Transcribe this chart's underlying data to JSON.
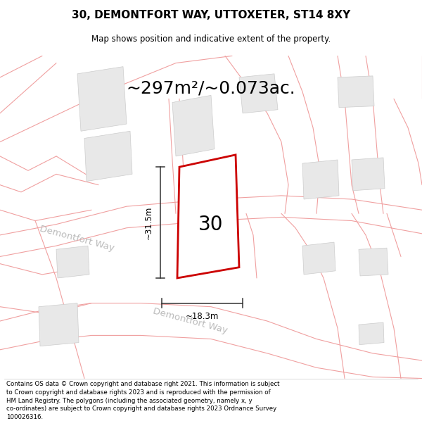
{
  "title": "30, DEMONTFORT WAY, UTTOXETER, ST14 8XY",
  "subtitle": "Map shows position and indicative extent of the property.",
  "area_text": "~297m²/~0.073ac.",
  "property_number": "30",
  "dim_height": "~31.5m",
  "dim_width": "~18.3m",
  "copyright_text": "Contains OS data © Crown copyright and database right 2021. This information is subject to Crown copyright and database rights 2023 and is reproduced with the permission of HM Land Registry. The polygons (including the associated geometry, namely x, y co-ordinates) are subject to Crown copyright and database rights 2023 Ordnance Survey 100026316.",
  "bg_color": "#ffffff",
  "map_bg": "#ffffff",
  "road_line_color": "#f0a0a0",
  "building_fill": "#e8e8e8",
  "building_edge": "#cccccc",
  "property_color": "#cc0000",
  "dim_color": "#333333",
  "road_label_color": "#bbbbbb",
  "title_fontsize": 11,
  "subtitle_fontsize": 8.5,
  "area_fontsize": 18,
  "prop_num_fontsize": 20,
  "dim_fontsize": 8.5,
  "road_label_fontsize": 9.5,
  "copyright_fontsize": 6.2
}
